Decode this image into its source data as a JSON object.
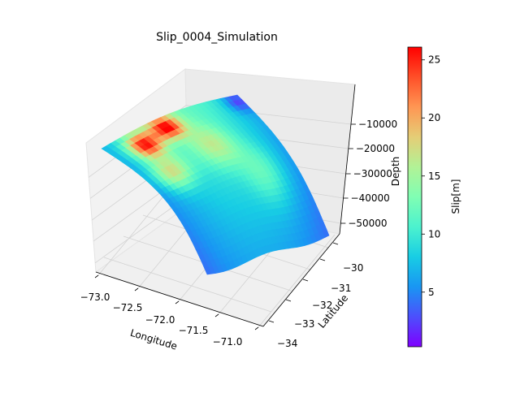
{
  "chart_data": {
    "type": "surface3d",
    "title": "Slip_0004_Simulation",
    "xlabel": "Longitude",
    "ylabel": "Latitude",
    "zlabel": "Depth",
    "colorbar_label": "Slip[m]",
    "colormap": "rainbow",
    "x_ticks": [
      "−73.0",
      "−72.5",
      "−72.0",
      "−71.5",
      "−71.0"
    ],
    "y_ticks": [
      "−30",
      "−31",
      "−32",
      "−33",
      "−34"
    ],
    "z_ticks": [
      "−10000",
      "−20000",
      "−30000",
      "−40000",
      "−50000"
    ],
    "colorbar_ticks": [
      "25",
      "20",
      "15",
      "10",
      "5"
    ],
    "colorbar_range": [
      0.3,
      26.1
    ],
    "surface": {
      "longitude_range": [
        -73.0,
        -71.0
      ],
      "latitude_range": [
        -30.0,
        -33.0
      ],
      "depth_range": [
        -5000,
        -55000
      ],
      "slip_hotspots": [
        {
          "longitude": -72.6,
          "latitude": -32.6,
          "slip": 25.5
        },
        {
          "longitude": -72.7,
          "latitude": -32.0,
          "slip": 24.0
        },
        {
          "longitude": -72.3,
          "latitude": -31.2,
          "slip": 13.0
        }
      ]
    }
  }
}
